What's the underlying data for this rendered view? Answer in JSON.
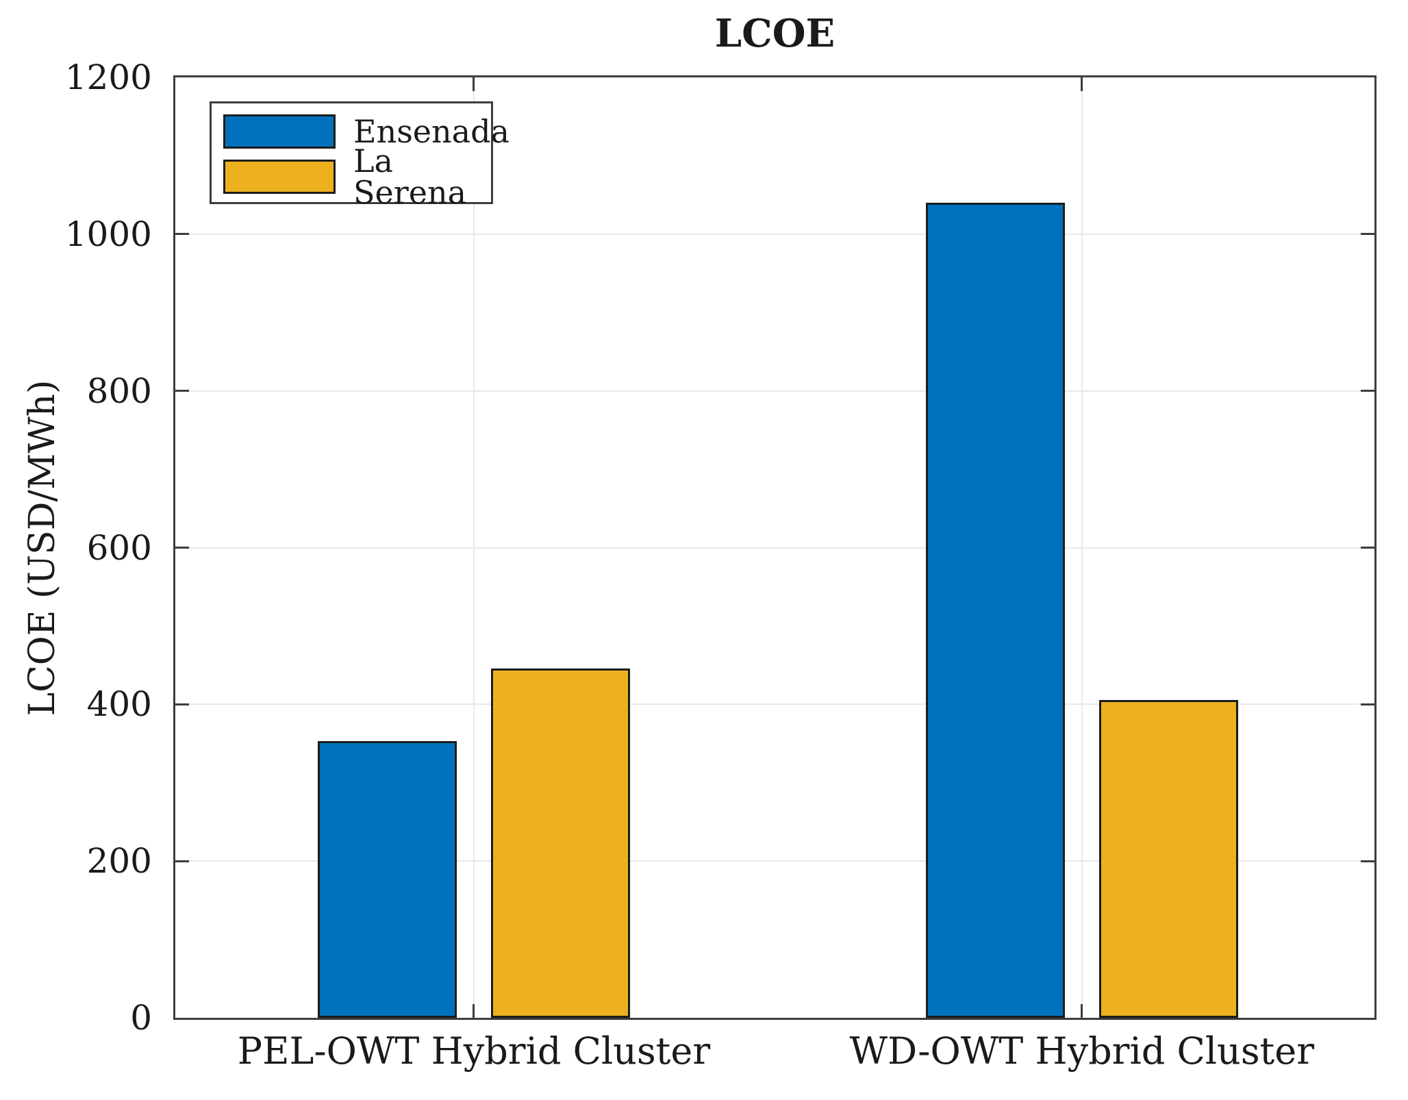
{
  "chart_data": {
    "type": "bar",
    "title": "LCOE",
    "xlabel": "",
    "ylabel": "LCOE (USD/MWh)",
    "categories": [
      "PEL-OWT Hybrid Cluster",
      "WD-OWT Hybrid Cluster"
    ],
    "series": [
      {
        "name": "Ensenada",
        "color": "#0072BD",
        "values": [
          353,
          1040
        ]
      },
      {
        "name": "La Serena",
        "color": "#EDB120",
        "values": [
          446,
          406
        ]
      }
    ],
    "ylim": [
      0,
      1200
    ],
    "yticks": [
      0,
      200,
      400,
      600,
      800,
      1000,
      1200
    ],
    "grid": true,
    "legend_position": "top-left",
    "colors": {
      "bar_edge": "#1c1c1c",
      "axis": "#3d3d3d",
      "gridline": "#e8e8e8",
      "text": "#1a1a1a"
    }
  }
}
